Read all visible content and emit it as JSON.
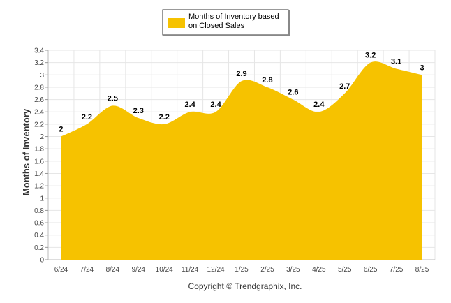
{
  "chart_data": {
    "type": "area",
    "categories": [
      "6/24",
      "7/24",
      "8/24",
      "9/24",
      "10/24",
      "11/24",
      "12/24",
      "1/25",
      "2/25",
      "3/25",
      "4/25",
      "5/25",
      "6/25",
      "7/25",
      "8/25"
    ],
    "series": [
      {
        "name": "Months of Inventory based on Closed Sales",
        "values": [
          2,
          2.2,
          2.5,
          2.3,
          2.2,
          2.4,
          2.4,
          2.9,
          2.8,
          2.6,
          2.4,
          2.7,
          3.2,
          3.1,
          3
        ],
        "data_labels": [
          "2",
          "2.2",
          "2.5",
          "2.3",
          "2.2",
          "2.4",
          "2.4",
          "2.9",
          "2.8",
          "2.6",
          "2.4",
          "2.7",
          "3.2",
          "3.1",
          "3"
        ],
        "color": "#F6C200"
      }
    ],
    "legend": {
      "lines": [
        "Months of Inventory based",
        "on Closed Sales"
      ],
      "position": "top-center"
    },
    "ylabel": "Months of Inventory",
    "xlabel": "",
    "ylim": [
      0,
      3.4
    ],
    "yticks": [
      "0",
      "0.2",
      "0.4",
      "0.6",
      "0.8",
      "1",
      "1.2",
      "1.4",
      "1.6",
      "1.8",
      "2",
      "2.2",
      "2.4",
      "2.6",
      "2.8",
      "3",
      "3.2",
      "3.4"
    ],
    "grid": true,
    "grid_color": "#E6E6E6"
  },
  "footer": {
    "copyright": "Copyright © Trendgraphix, Inc."
  }
}
